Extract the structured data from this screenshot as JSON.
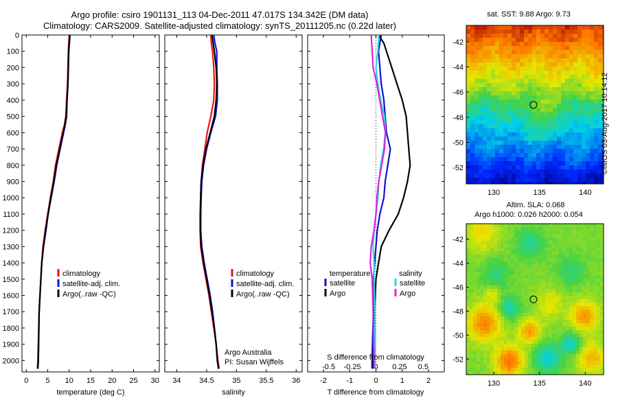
{
  "header": {
    "title_line1": "Argo profile: csiro 1901131_113 04-Dec-2011 47.017S 134.342E (DM data)",
    "title_line2": "Climatology: CARS2009. Satellite-adjusted climatology: synTS_20111205.nc (0.22d later)"
  },
  "colors": {
    "climatology": "#ee1111",
    "satellite": "#1111cc",
    "argo": "#000000",
    "sal_satellite": "#22dddd",
    "sal_argo": "#dd22dd"
  },
  "chart_data": [
    {
      "type": "line",
      "panel": "temperature",
      "xlabel": "temperature (deg C)",
      "xlim": [
        -1,
        31
      ],
      "xticks": [
        0,
        5,
        10,
        15,
        20,
        25,
        30
      ],
      "ylim": [
        2070,
        0
      ],
      "yticks": [
        0,
        100,
        200,
        300,
        400,
        500,
        600,
        700,
        800,
        900,
        1000,
        1100,
        1200,
        1300,
        1400,
        1500,
        1600,
        1700,
        1800,
        1900,
        2000
      ],
      "legend": [
        "climatology",
        "satellite-adj. clim.",
        "Argo(..raw -QC)"
      ],
      "series": [
        {
          "name": "climatology",
          "color_key": "climatology",
          "depth": [
            0,
            100,
            200,
            300,
            400,
            500,
            550,
            600,
            700,
            800,
            900,
            1000,
            1100,
            1200,
            1300,
            1400,
            1500,
            1700,
            2000,
            2050
          ],
          "values": [
            10.0,
            9.8,
            9.7,
            9.6,
            9.4,
            9.2,
            8.9,
            8.4,
            7.6,
            6.8,
            6.3,
            5.6,
            5.0,
            4.4,
            3.9,
            3.6,
            3.4,
            3.0,
            2.7,
            2.6
          ]
        },
        {
          "name": "satellite-adj. clim.",
          "color_key": "satellite",
          "depth": [
            0,
            100,
            200,
            300,
            400,
            500,
            550,
            600,
            700,
            800,
            900,
            1000,
            1100,
            1200,
            1300,
            1400,
            1500,
            1700,
            2000,
            2050
          ],
          "values": [
            10.2,
            9.9,
            9.8,
            9.7,
            9.5,
            9.4,
            9.1,
            8.7,
            7.9,
            7.1,
            6.5,
            5.8,
            5.1,
            4.6,
            4.0,
            3.6,
            3.4,
            3.0,
            2.8,
            2.7
          ]
        },
        {
          "name": "Argo(..raw -QC)",
          "color_key": "argo",
          "depth": [
            0,
            100,
            200,
            300,
            400,
            500,
            550,
            600,
            700,
            800,
            900,
            1000,
            1100,
            1200,
            1300,
            1400,
            1500,
            1700,
            2000,
            2050
          ],
          "values": [
            10.1,
            9.9,
            9.8,
            9.7,
            9.5,
            9.3,
            9.0,
            8.6,
            7.8,
            7.0,
            6.4,
            5.7,
            5.1,
            4.5,
            4.0,
            3.6,
            3.4,
            3.0,
            2.8,
            2.7
          ]
        }
      ]
    },
    {
      "type": "line",
      "panel": "salinity",
      "xlabel": "salinity",
      "xlim": [
        33.8,
        36.1
      ],
      "xticks": [
        34,
        34.5,
        35,
        35.5,
        36
      ],
      "xticklabels": [
        "34",
        "34.5",
        "35",
        "35.5",
        "36"
      ],
      "ylim": [
        2070,
        0
      ],
      "legend": [
        "climatology",
        "satellite-adj. clim.",
        "Argo(..raw -QC)"
      ],
      "annotation_line1": "Argo Australia",
      "annotation_line2": "PI: Susan Wijffels",
      "series": [
        {
          "name": "climatology",
          "color_key": "climatology",
          "depth": [
            0,
            50,
            100,
            200,
            300,
            400,
            500,
            600,
            700,
            800,
            900,
            1000,
            1100,
            1200,
            1300,
            1400,
            1500,
            1600,
            1700,
            1800,
            1900,
            2000,
            2050
          ],
          "values": [
            34.57,
            34.58,
            34.6,
            34.62,
            34.63,
            34.62,
            34.57,
            34.51,
            34.47,
            34.43,
            34.41,
            34.4,
            34.39,
            34.39,
            34.4,
            34.44,
            34.49,
            34.54,
            34.58,
            34.62,
            34.66,
            34.69,
            34.71
          ]
        },
        {
          "name": "satellite-adj. clim.",
          "color_key": "satellite",
          "depth": [
            0,
            50,
            100,
            200,
            300,
            400,
            500,
            600,
            700,
            800,
            900,
            1000,
            1100,
            1200,
            1300,
            1400,
            1500,
            1600,
            1700,
            1800,
            1900,
            2000,
            2050
          ],
          "values": [
            34.62,
            34.64,
            34.67,
            34.67,
            34.68,
            34.68,
            34.65,
            34.57,
            34.5,
            34.45,
            34.42,
            34.41,
            34.4,
            34.4,
            34.42,
            34.46,
            34.51,
            34.56,
            34.6,
            34.63,
            34.66,
            34.68,
            34.7
          ]
        },
        {
          "name": "Argo(..raw -QC)",
          "color_key": "argo",
          "depth": [
            0,
            50,
            100,
            200,
            300,
            400,
            500,
            600,
            700,
            800,
            900,
            1000,
            1100,
            1200,
            1300,
            1400,
            1500,
            1600,
            1700,
            1800,
            1900,
            2000,
            2050
          ],
          "values": [
            34.59,
            34.61,
            34.63,
            34.66,
            34.67,
            34.66,
            34.63,
            34.56,
            34.49,
            34.44,
            34.41,
            34.4,
            34.4,
            34.4,
            34.41,
            34.45,
            34.5,
            34.55,
            34.59,
            34.63,
            34.66,
            34.68,
            34.7
          ]
        }
      ]
    },
    {
      "type": "line",
      "panel": "differences",
      "xlabel": "T difference from climatology",
      "xlabel_top": "S difference from climatology",
      "xlim": [
        -2.6,
        2.6
      ],
      "xticks": [
        -2,
        -1,
        0,
        1,
        2
      ],
      "xticks_salinity": [
        -0.5,
        -0.25,
        0,
        0.25,
        0.5
      ],
      "xticks_salinity_labels": [
        "-0.5",
        "-0.25",
        "0",
        "0.25",
        "0.5"
      ],
      "ylim": [
        2070,
        0
      ],
      "legend_temperature_title": "temperature",
      "legend_salinity_title": "salinity",
      "legend_labels": [
        "satellite",
        "Argo",
        "satellite",
        "Argo"
      ],
      "series": [
        {
          "name": "T satellite",
          "color_key": "satellite",
          "depth": [
            0,
            50,
            100,
            200,
            300,
            400,
            500,
            600,
            700,
            800,
            900,
            1000,
            1100,
            1200,
            1300,
            1400,
            1500,
            1700,
            2000,
            2050
          ],
          "values": [
            0.2,
            0.15,
            0.1,
            0.15,
            0.2,
            0.3,
            0.35,
            0.4,
            0.55,
            0.45,
            0.35,
            0.3,
            0.15,
            0.05,
            0.0,
            -0.05,
            -0.1,
            -0.1,
            -0.15,
            -0.15
          ]
        },
        {
          "name": "T Argo",
          "color_key": "argo",
          "depth": [
            0,
            50,
            100,
            200,
            300,
            400,
            500,
            600,
            700,
            800,
            900,
            1000,
            1100,
            1200,
            1300,
            1400,
            1500,
            1700,
            2000,
            2050
          ],
          "values": [
            0.1,
            0.3,
            0.4,
            0.6,
            0.8,
            1.0,
            1.15,
            1.2,
            1.25,
            1.3,
            1.2,
            1.05,
            0.85,
            0.5,
            0.2,
            0.1,
            0.0,
            -0.05,
            -0.1,
            -0.1
          ]
        },
        {
          "name": "S satellite",
          "color_key": "sal_satellite",
          "depth": [
            0,
            100,
            200,
            300,
            400,
            500,
            600,
            700,
            800,
            900,
            1000,
            1100,
            1200,
            1300,
            1400,
            1500,
            1700,
            2000,
            2050
          ],
          "values": [
            0.03,
            0.02,
            0.0,
            0.02,
            0.05,
            0.09,
            0.1,
            0.08,
            0.05,
            0.03,
            0.02,
            0.0,
            -0.02,
            -0.03,
            -0.02,
            -0.02,
            -0.01,
            -0.01,
            -0.01
          ]
        },
        {
          "name": "S Argo",
          "color_key": "sal_argo",
          "depth": [
            0,
            100,
            200,
            300,
            400,
            500,
            600,
            700,
            800,
            900,
            1000,
            1100,
            1200,
            1300,
            1400,
            1500,
            1700,
            2000,
            2050
          ],
          "values": [
            -0.05,
            -0.04,
            -0.03,
            0.01,
            0.04,
            0.07,
            0.1,
            0.09,
            0.06,
            0.03,
            0.01,
            0.0,
            -0.02,
            -0.05,
            -0.06,
            -0.04,
            -0.03,
            -0.02,
            -0.02
          ]
        }
      ]
    },
    {
      "type": "heatmap",
      "panel": "sst_map",
      "title": "sat. SST: 9.88 Argo: 9.73",
      "xlim": [
        127,
        142
      ],
      "ylim": [
        -53.3,
        -40.7
      ],
      "xticks": [
        130,
        135,
        140
      ],
      "yticks": [
        -42,
        -44,
        -46,
        -48,
        -50,
        -52
      ],
      "marker": {
        "lon": 134.342,
        "lat": -47.017
      }
    },
    {
      "type": "heatmap",
      "panel": "sla_map",
      "title_line1": "Altim. SLA: 0.068",
      "title_line2": "Argo h1000: 0.026 h2000: 0.054",
      "xlim": [
        127,
        142
      ],
      "ylim": [
        -53.3,
        -40.7
      ],
      "xticks": [
        130,
        135,
        140
      ],
      "yticks": [
        -42,
        -44,
        -46,
        -48,
        -50,
        -52
      ],
      "marker": {
        "lon": 134.342,
        "lat": -47.017
      }
    }
  ],
  "credit": "©IMOS 03-Aug-2017 10:14:12"
}
